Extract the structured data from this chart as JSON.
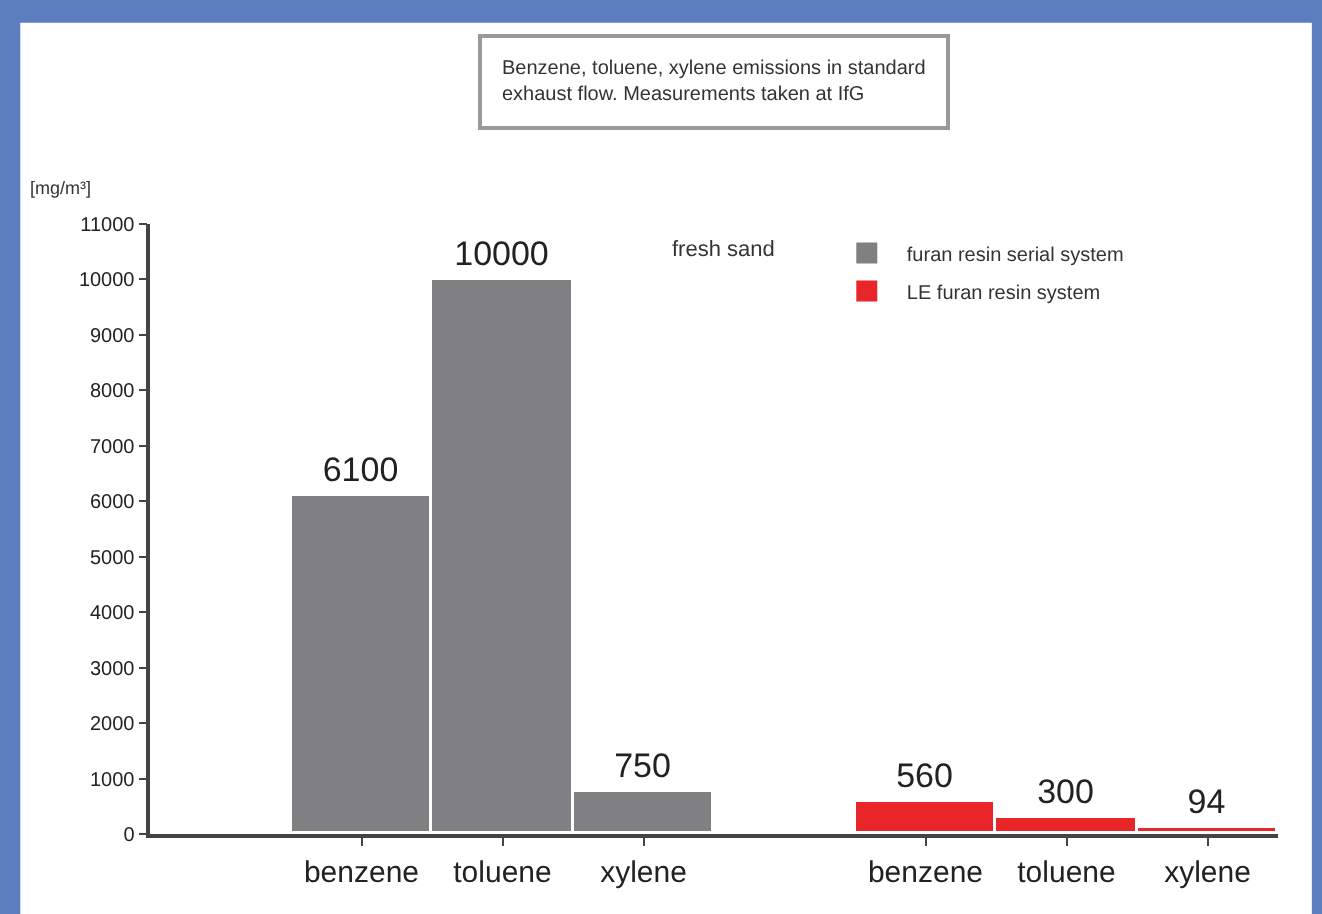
{
  "chart_data": {
    "type": "bar",
    "title": "Benzene, toluene, xylene emissions in standard exhaust flow. Measurements taken at IfG",
    "ylabel": "[mg/m³]",
    "annotations": [
      "fresh sand"
    ],
    "categories": [
      null,
      "benzene",
      "toluene",
      "xylene",
      null,
      "benzene",
      "toluene",
      "xylene"
    ],
    "series": [
      {
        "name": "furan resin serial system",
        "color": "#808083",
        "values": [
          null,
          6100,
          10000,
          750,
          null,
          null,
          null,
          null
        ]
      },
      {
        "name": "LE furan resin system",
        "color": "#e8262a",
        "values": [
          null,
          null,
          null,
          null,
          null,
          560,
          300,
          94
        ]
      }
    ],
    "ylim": [
      0,
      11000
    ],
    "yticks": [
      0,
      1000,
      2000,
      3000,
      4000,
      5000,
      6000,
      7000,
      8000,
      9000,
      10000,
      11000
    ],
    "data_labels": true,
    "legend": "top right"
  }
}
